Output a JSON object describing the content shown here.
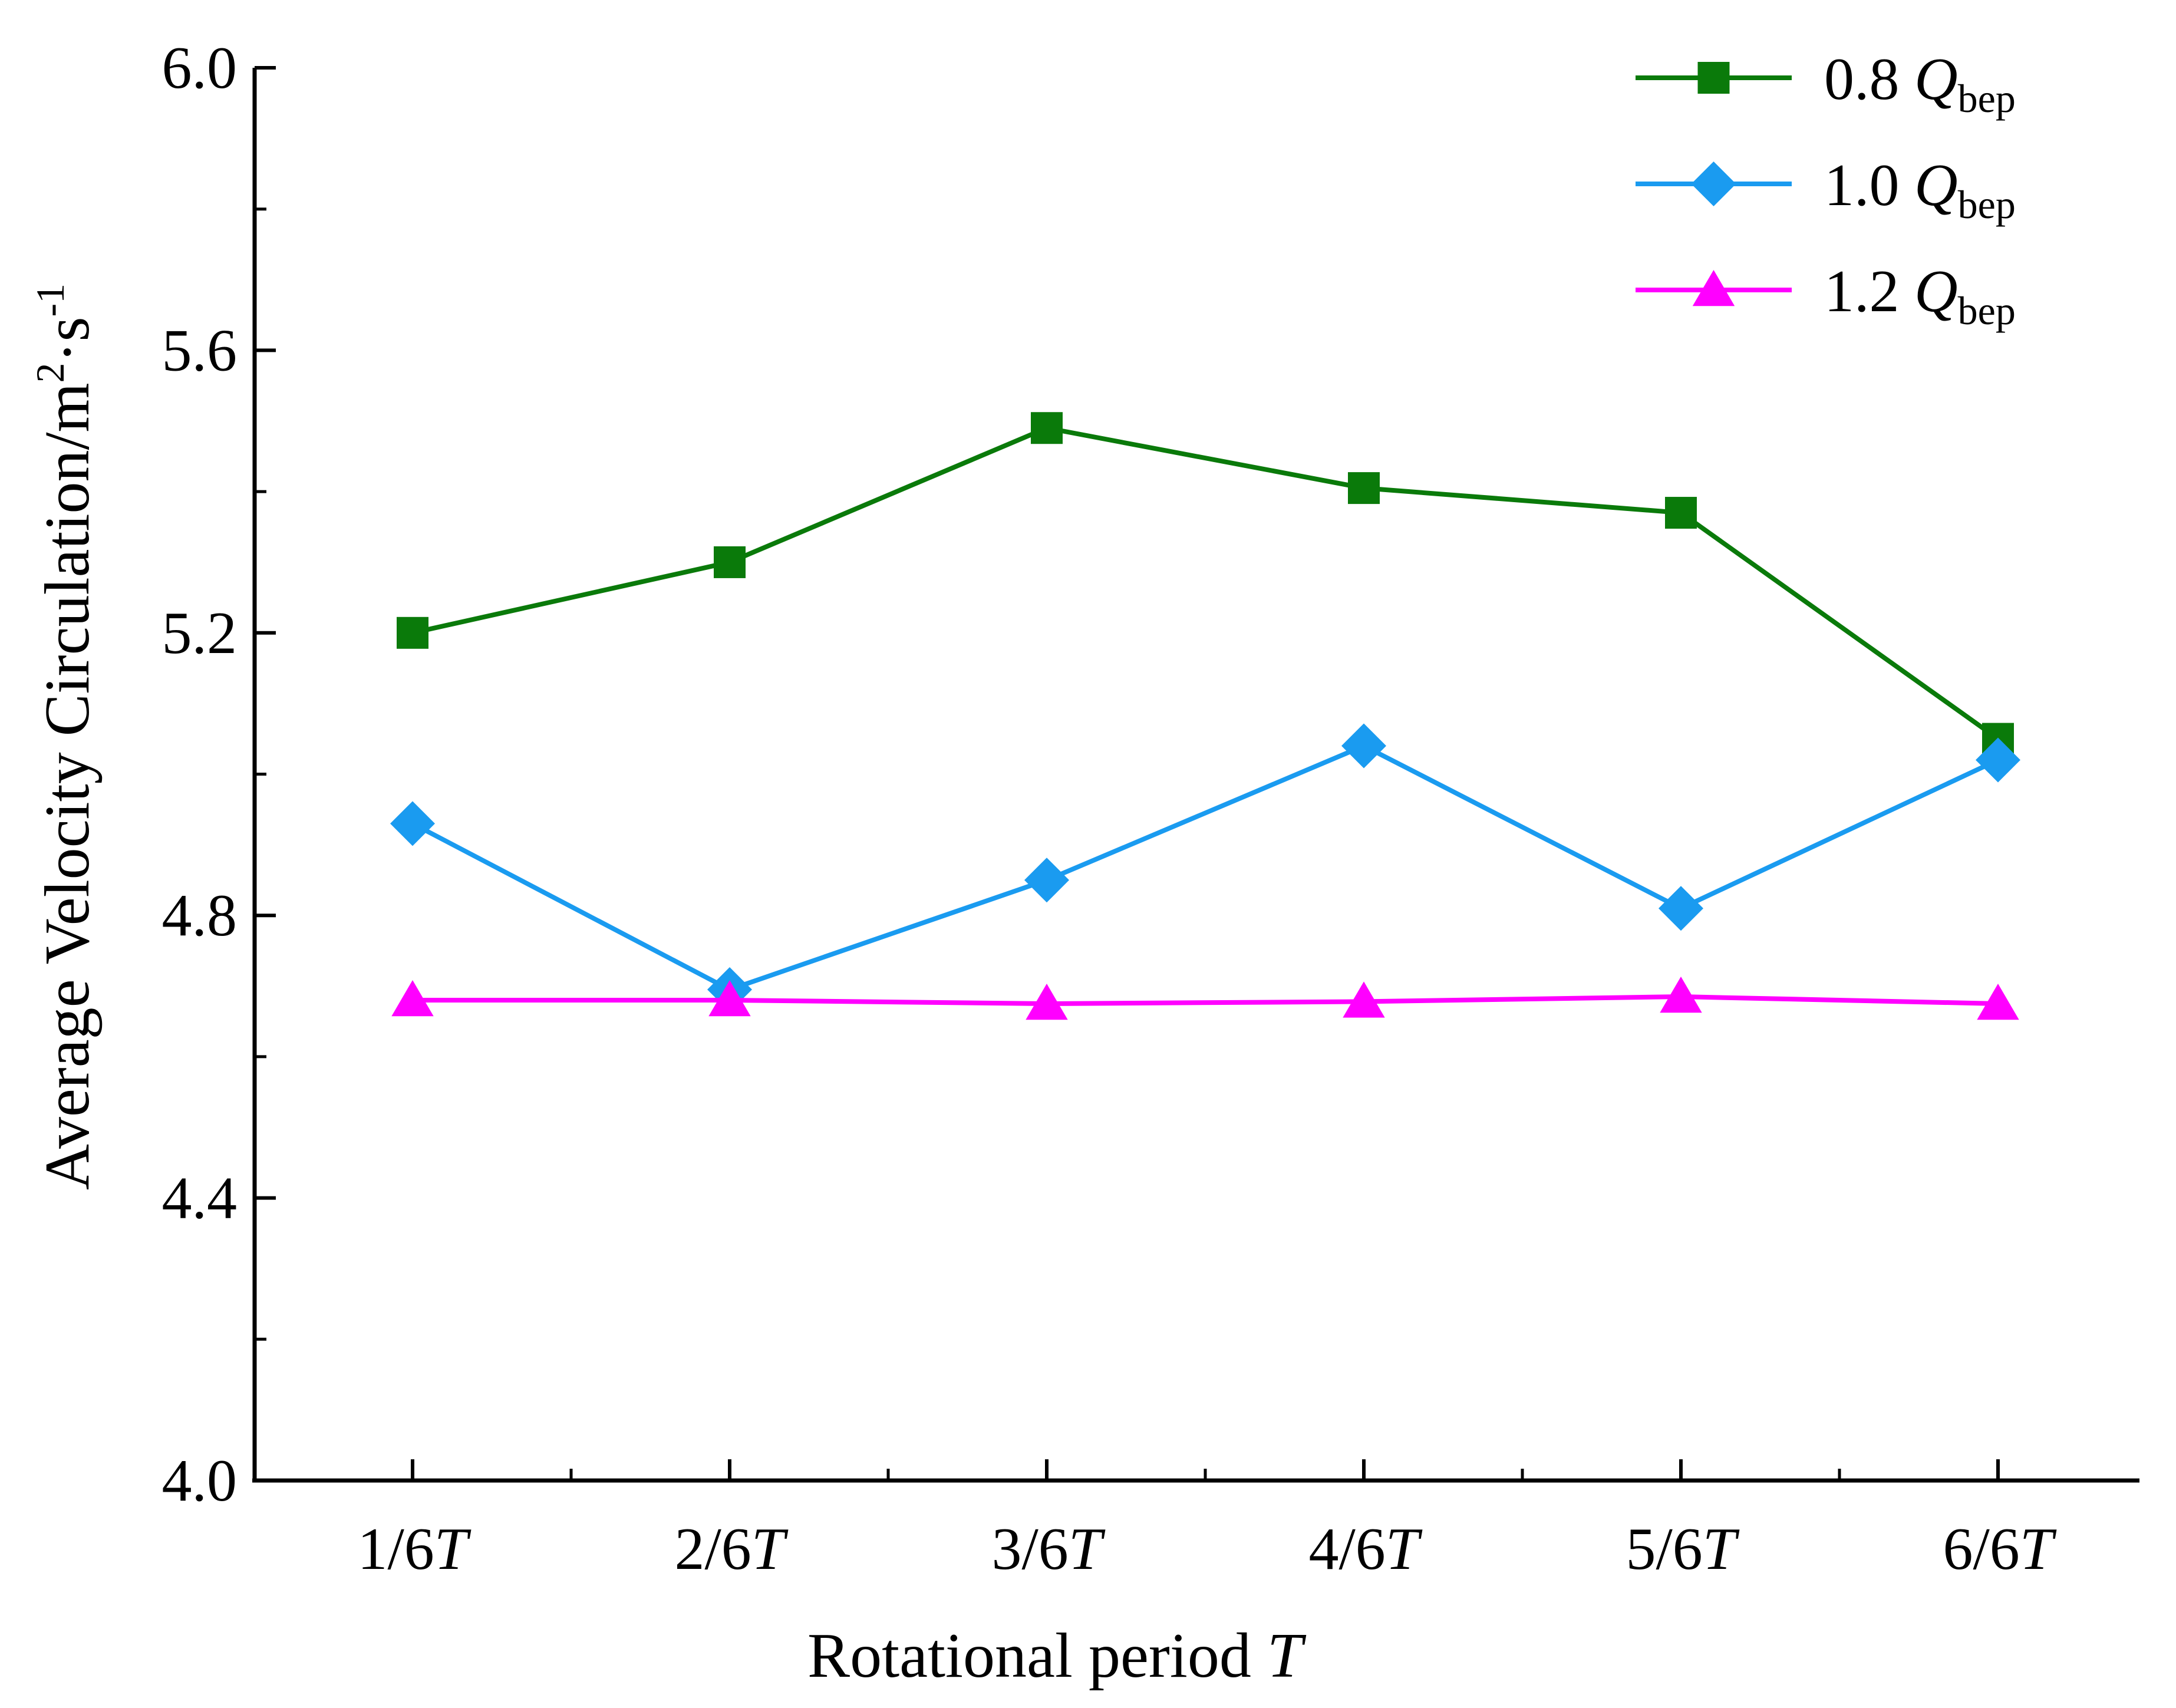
{
  "chart_data": {
    "type": "line",
    "title": "",
    "xlabel": "Rotational period",
    "xlabel_italic": "T",
    "ylabel": "Average Velocity Circulation/m",
    "ylabel_unit_exp1": "2",
    "ylabel_unit_mid": "·s",
    "ylabel_unit_exp2": "-1",
    "categories": [
      "1/6",
      "2/6",
      "3/6",
      "4/6",
      "5/6",
      "6/6"
    ],
    "category_suffix": "T",
    "ylim": [
      4.0,
      6.0
    ],
    "yticks": [
      "4.0",
      "4.4",
      "4.8",
      "5.2",
      "5.6",
      "6.0"
    ],
    "ytick_values": [
      4.0,
      4.4,
      4.8,
      5.2,
      5.6,
      6.0
    ],
    "grid": false,
    "legend_position": "top-right",
    "series": [
      {
        "name_prefix": "0.8",
        "name_symbol": "Q",
        "name_sub": "bep",
        "marker": "square",
        "color": "#0a7a0a",
        "values": [
          5.2,
          5.3,
          5.49,
          5.405,
          5.37,
          5.05
        ]
      },
      {
        "name_prefix": "1.0",
        "name_symbol": "Q",
        "name_sub": "bep",
        "marker": "diamond",
        "color": "#1a9bf0",
        "values": [
          4.93,
          4.695,
          4.85,
          5.04,
          4.81,
          5.02
        ]
      },
      {
        "name_prefix": "1.2",
        "name_symbol": "Q",
        "name_sub": "bep",
        "marker": "triangle",
        "color": "#ff00ff",
        "values": [
          4.68,
          4.68,
          4.675,
          4.678,
          4.685,
          4.675
        ]
      }
    ]
  }
}
